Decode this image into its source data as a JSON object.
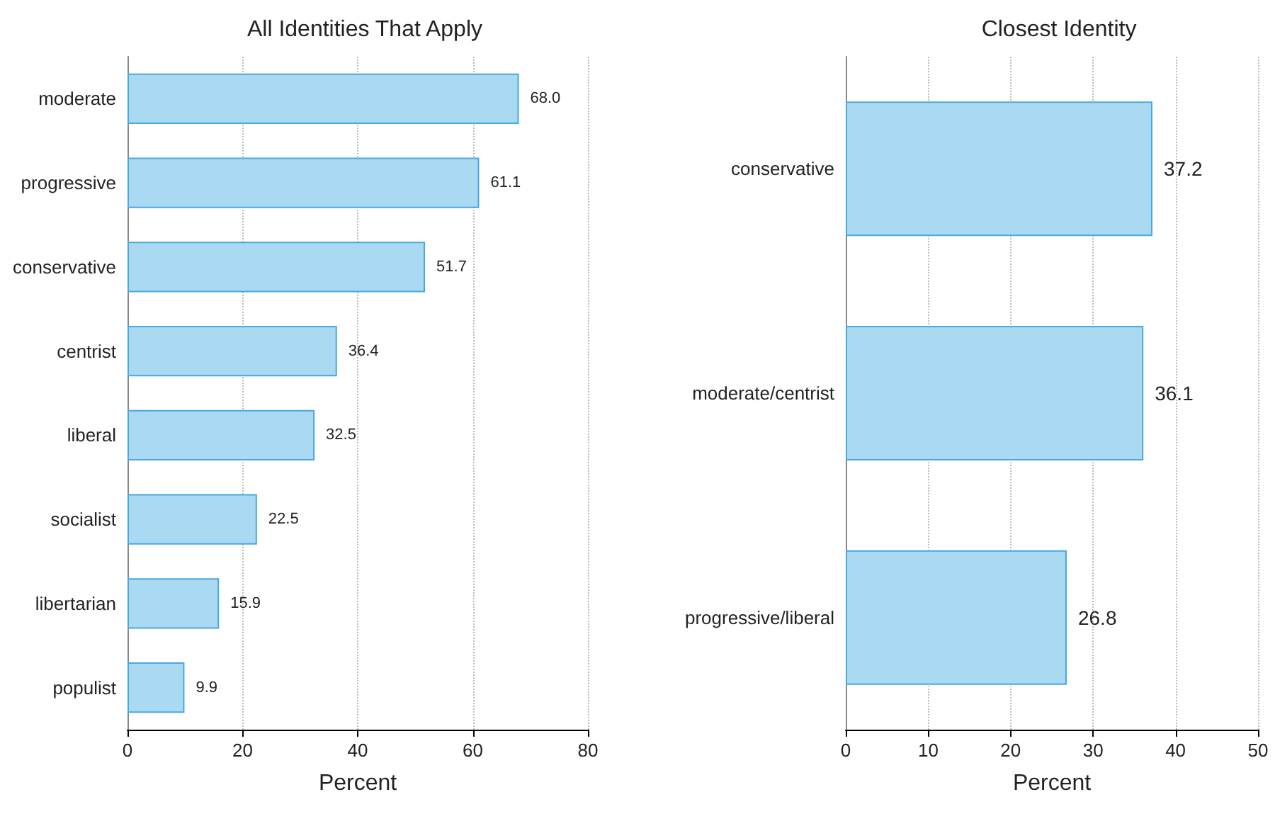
{
  "chart_data": [
    {
      "type": "bar",
      "orientation": "horizontal",
      "title": "All Identities That Apply",
      "xlabel": "Percent",
      "categories": [
        "moderate",
        "progressive",
        "conservative",
        "centrist",
        "liberal",
        "socialist",
        "libertarian",
        "populist"
      ],
      "values": [
        68.0,
        61.1,
        51.7,
        36.4,
        32.5,
        22.5,
        15.9,
        9.9
      ],
      "value_labels": [
        "68.0",
        "61.1",
        "51.7",
        "36.4",
        "32.5",
        "22.5",
        "15.9",
        "9.9"
      ],
      "color": "#aad9f2",
      "xlim": [
        0,
        80
      ],
      "xticks": [
        0,
        20,
        40,
        60,
        80
      ],
      "grid": "x"
    },
    {
      "type": "bar",
      "orientation": "horizontal",
      "title": "Closest Identity",
      "xlabel": "Percent",
      "categories": [
        "conservative",
        "moderate/centrist",
        "progressive/liberal"
      ],
      "values": [
        37.2,
        36.1,
        26.8
      ],
      "value_labels": [
        "37.2",
        "36.1",
        "26.8"
      ],
      "color": "#aad9f2",
      "xlim": [
        0,
        50
      ],
      "xticks": [
        0,
        10,
        20,
        30,
        40,
        50
      ],
      "grid": "x"
    }
  ]
}
